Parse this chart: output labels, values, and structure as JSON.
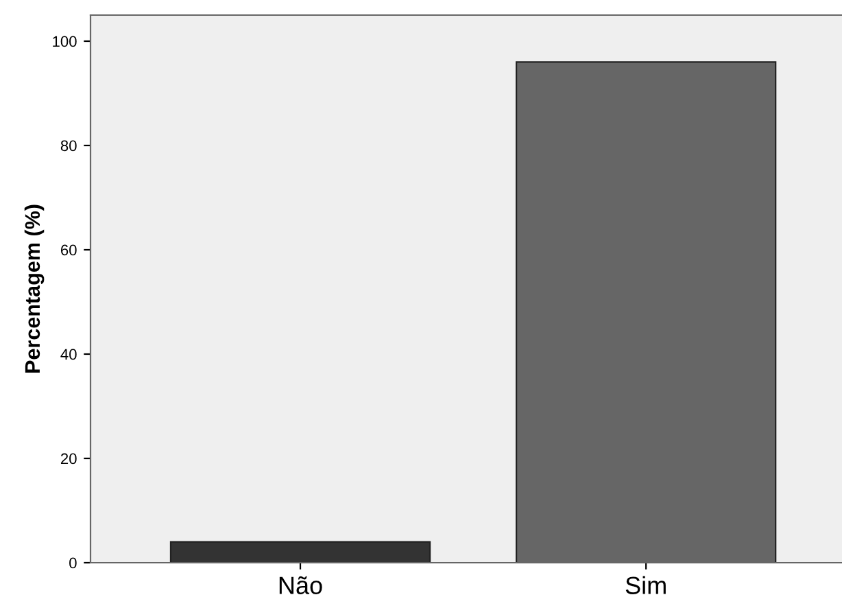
{
  "chart_data": {
    "type": "bar",
    "ylabel": "Percentagem (%)",
    "categories": [
      "Não",
      "Sim"
    ],
    "values": [
      4,
      96
    ],
    "colors": [
      "#333333",
      "#666666"
    ],
    "ylim": [
      0,
      105
    ],
    "yticks": [
      0,
      20,
      40,
      60,
      80,
      100
    ],
    "grid": false,
    "legend": false
  }
}
